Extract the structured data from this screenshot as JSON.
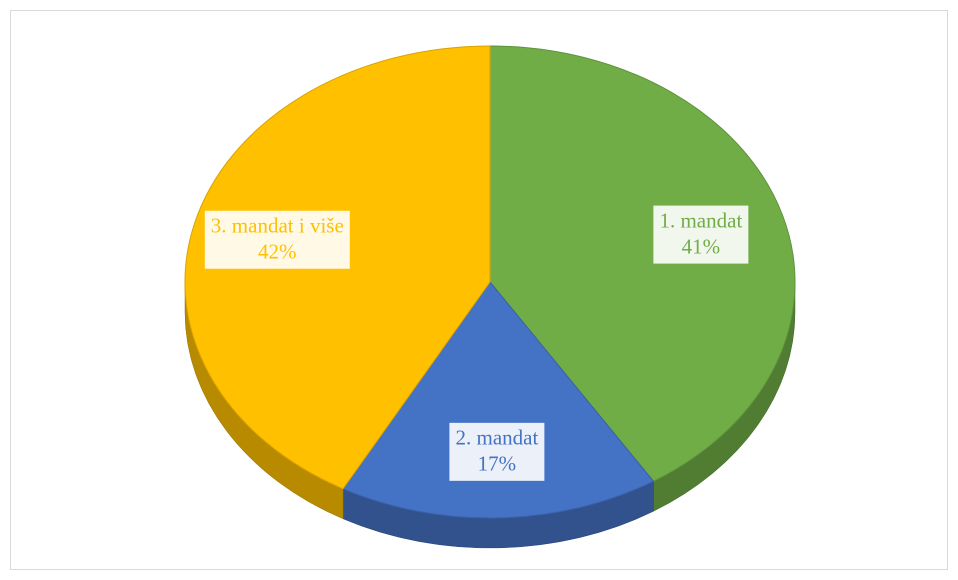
{
  "chart_data": {
    "type": "pie",
    "categories": [
      "1. mandat",
      "2. mandat",
      "3. mandat i više"
    ],
    "values": [
      41,
      17,
      42
    ],
    "value_labels": [
      "41%",
      "17%",
      "42%"
    ],
    "colors": [
      "#70ad47",
      "#4472c4",
      "#ffc000"
    ]
  }
}
